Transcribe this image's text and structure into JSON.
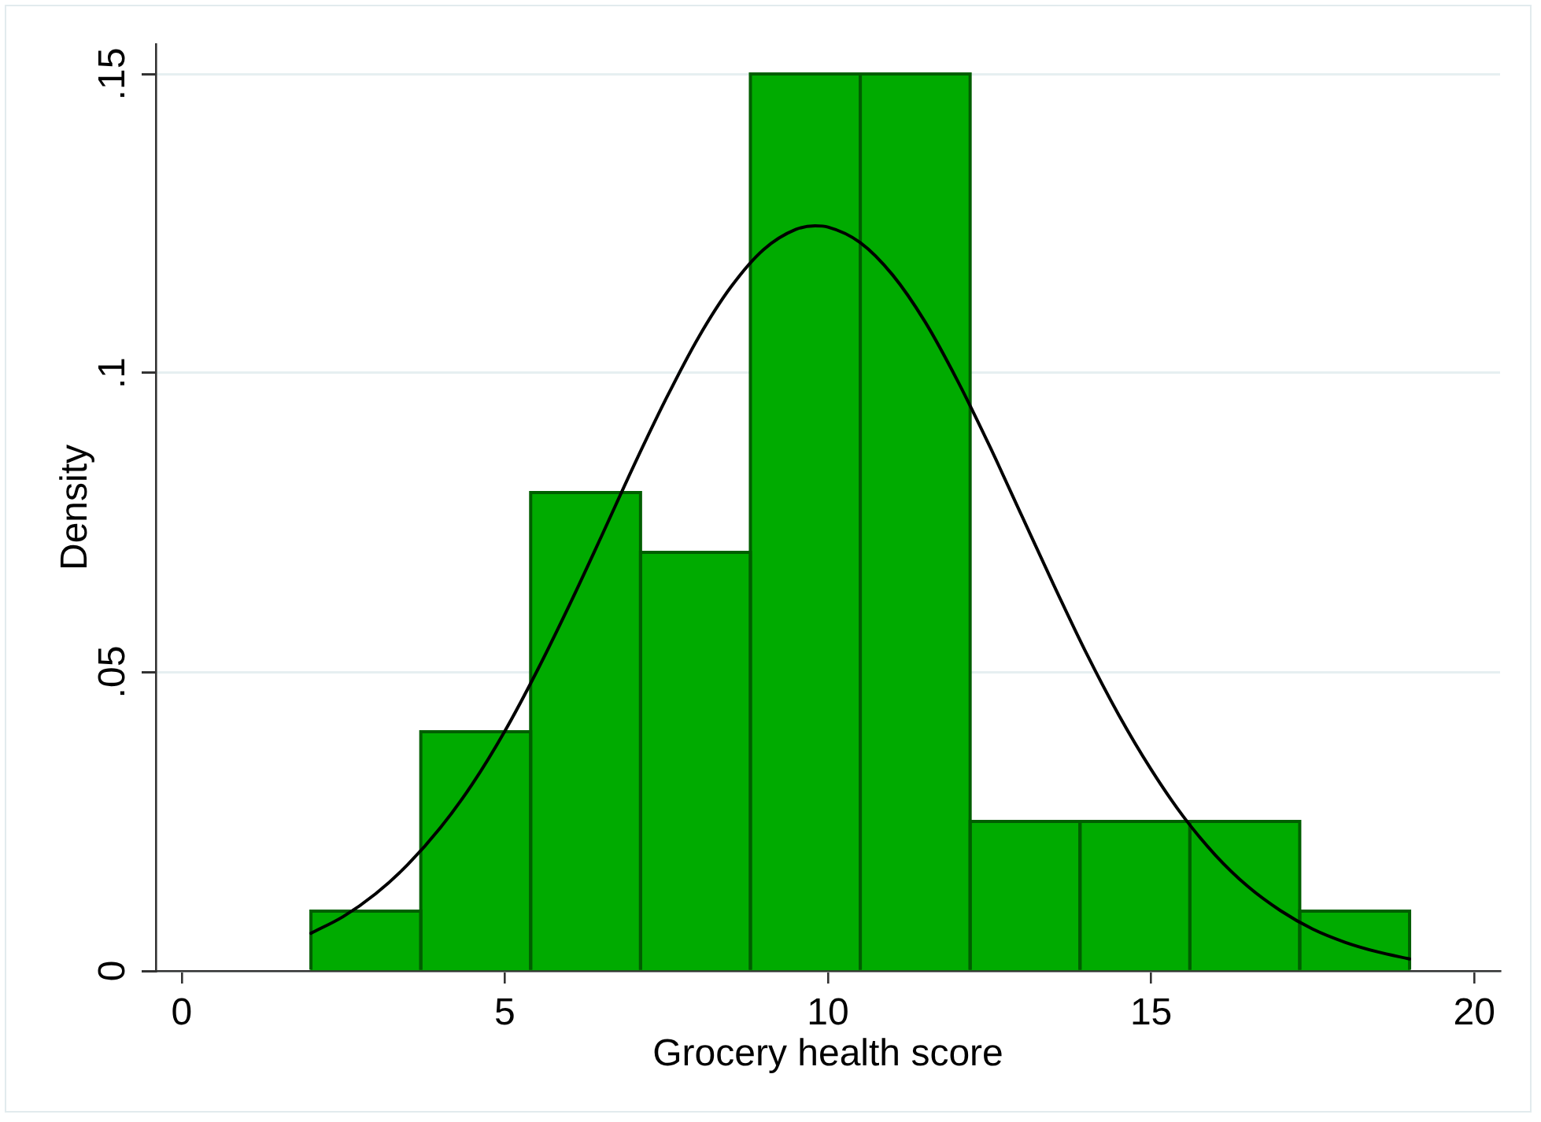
{
  "chart_data": {
    "type": "histogram",
    "xlabel": "Grocery health score",
    "ylabel": "Density",
    "bins": [
      2,
      3.7,
      5.4,
      7.1,
      8.8,
      10.5,
      12.2,
      13.9,
      15.6,
      17.3,
      19
    ],
    "series": [
      {
        "type": "histogram",
        "color": "#00ab00",
        "values": [
          0.01,
          0.04,
          0.08,
          0.07,
          0.15,
          0.15,
          0.025,
          0.025,
          0.025,
          0.01
        ]
      },
      {
        "type": "line",
        "color": "#000000",
        "x": [
          2,
          2.5,
          3,
          3.5,
          4,
          4.5,
          5,
          5.5,
          6,
          6.5,
          7,
          7.5,
          8,
          8.5,
          9,
          9.5,
          9.8,
          10,
          10.5,
          11,
          11.5,
          12,
          12.5,
          13,
          13.5,
          14,
          14.5,
          15,
          15.5,
          16,
          16.5,
          17,
          17.5,
          18,
          18.5,
          19
        ],
        "values": [
          0.0063,
          0.0091,
          0.0129,
          0.0178,
          0.0239,
          0.0313,
          0.0401,
          0.0502,
          0.0612,
          0.0728,
          0.0846,
          0.0958,
          0.106,
          0.1144,
          0.1206,
          0.124,
          0.1246,
          0.1244,
          0.1218,
          0.1164,
          0.1086,
          0.0988,
          0.0878,
          0.0761,
          0.0644,
          0.0531,
          0.0428,
          0.0337,
          0.0258,
          0.0193,
          0.0141,
          0.0101,
          0.007,
          0.0048,
          0.0032,
          0.002
        ]
      }
    ],
    "xlim": [
      -0.4,
      20.4
    ],
    "xticks": [
      0,
      5,
      10,
      15,
      20
    ],
    "ylim": [
      0,
      0.155
    ],
    "yticks": [
      0,
      {
        "value": 0.05,
        "label": ".05"
      },
      {
        "value": 0.1,
        "label": ".1"
      },
      {
        "value": 0.15,
        "label": ".15"
      }
    ],
    "grid": "y",
    "marker": "none",
    "line_style": "solid"
  }
}
